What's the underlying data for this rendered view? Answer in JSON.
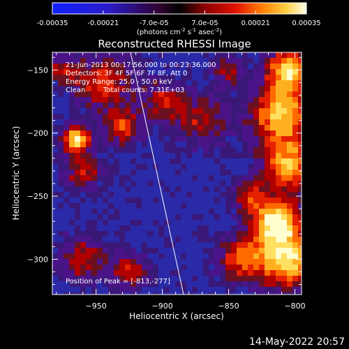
{
  "colorbar": {
    "ticks": [
      "-0.00035",
      "-0.00021",
      "-7.0e-05",
      "7.0e-05",
      "0.00021",
      "0.00035"
    ],
    "range": [
      -0.00035,
      0.00035
    ],
    "unit_prefix": "(photons cm",
    "unit_cm_exp": "-2",
    "unit_s": " s",
    "unit_s_exp": "-1",
    "unit_asec": " asec",
    "unit_asec_exp": "-2",
    "unit_suffix": ")",
    "colors": {
      "low": "#1020ff",
      "zero": "#000000",
      "mid": "#e01000",
      "high": "#fffff0"
    }
  },
  "chart_data": {
    "type": "heatmap",
    "title": "Reconstructed RHESSI Image",
    "xlabel": "Heliocentric X (arcsec)",
    "ylabel": "Heliocentric Y (arcsec)",
    "xlim": [
      -983,
      -795
    ],
    "ylim": [
      -328,
      -136
    ],
    "xticks": [
      -950,
      -900,
      -850,
      -800
    ],
    "yticks": [
      -150,
      -200,
      -250,
      -300
    ],
    "limb_line": {
      "x": [
        -924,
        -884
      ],
      "y": [
        -136,
        -328
      ]
    },
    "peak": {
      "x": -813,
      "y": -277
    }
  },
  "overlay": {
    "time_range": "21-Jun-2013 00:17:56.000 to 00:23:36.000",
    "detectors": "Detectors: 3F 4F 5F 6F 7F 8F, Att 0",
    "energy_range": "Energy Range: 25.0 - 50.0 keV",
    "algorithm": "Clean",
    "total_counts": "Total counts: 7.31E+03",
    "peak_position": "Position of Peak = [-813,-277]"
  },
  "footer": {
    "date": "14-May-2022 20:57"
  }
}
